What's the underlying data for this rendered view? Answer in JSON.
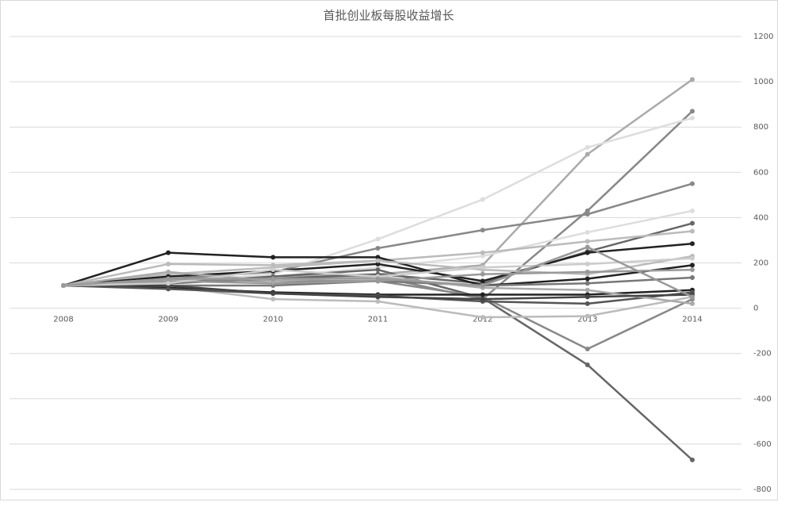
{
  "chart_data": {
    "type": "line",
    "title": "首批创业板每股收益增长",
    "categories": [
      "2008",
      "2009",
      "2010",
      "2011",
      "2012",
      "2013",
      "2014"
    ],
    "ylim": [
      -800,
      1200
    ],
    "yticks": [
      -800,
      -600,
      -400,
      -200,
      0,
      200,
      400,
      600,
      800,
      1000,
      1200
    ],
    "grid": true,
    "series": [
      {
        "color": "#aaaaaa",
        "values": [
          100,
          130,
          140,
          150,
          190,
          680,
          1010
        ]
      },
      {
        "color": "#888888",
        "values": [
          100,
          120,
          130,
          140,
          40,
          430,
          870
        ]
      },
      {
        "color": "#dddddd",
        "values": [
          100,
          110,
          150,
          305,
          480,
          710,
          840
        ]
      },
      {
        "color": "#888888",
        "values": [
          100,
          130,
          160,
          265,
          345,
          415,
          550
        ]
      },
      {
        "color": "#dddddd",
        "values": [
          100,
          120,
          140,
          180,
          230,
          335,
          430
        ]
      },
      {
        "color": "#666666",
        "values": [
          100,
          110,
          130,
          150,
          110,
          250,
          375
        ]
      },
      {
        "color": "#bbbbbb",
        "values": [
          100,
          150,
          180,
          210,
          245,
          295,
          340
        ]
      },
      {
        "color": "#222222",
        "values": [
          100,
          140,
          165,
          195,
          120,
          245,
          285
        ]
      },
      {
        "color": "#222222",
        "values": [
          100,
          245,
          225,
          225,
          100,
          130,
          190
        ]
      },
      {
        "color": "#666666",
        "values": [
          100,
          110,
          140,
          170,
          45,
          -250,
          -670
        ]
      },
      {
        "color": "#888888",
        "values": [
          100,
          130,
          120,
          120,
          50,
          -180,
          40
        ]
      },
      {
        "color": "#bbbbbb",
        "values": [
          100,
          95,
          40,
          30,
          -40,
          -35,
          50
        ]
      },
      {
        "color": "#bbbbbb",
        "values": [
          100,
          195,
          190,
          210,
          170,
          150,
          230
        ]
      },
      {
        "color": "#222222",
        "values": [
          100,
          90,
          70,
          60,
          60,
          60,
          80
        ]
      },
      {
        "color": "#555555",
        "values": [
          100,
          85,
          65,
          55,
          30,
          20,
          70
        ]
      },
      {
        "color": "#777777",
        "values": [
          100,
          100,
          100,
          120,
          100,
          110,
          135
        ]
      },
      {
        "color": "#999999",
        "values": [
          100,
          120,
          110,
          120,
          150,
          160,
          170
        ]
      },
      {
        "color": "#aaaaaa",
        "values": [
          100,
          160,
          120,
          140,
          90,
          80,
          20
        ]
      },
      {
        "color": "#444444",
        "values": [
          100,
          100,
          65,
          50,
          40,
          50,
          60
        ]
      },
      {
        "color": "#cccccc",
        "values": [
          100,
          110,
          170,
          140,
          180,
          195,
          220
        ]
      },
      {
        "color": "#999999",
        "values": [
          100,
          130,
          130,
          130,
          100,
          270,
          50
        ]
      }
    ]
  }
}
